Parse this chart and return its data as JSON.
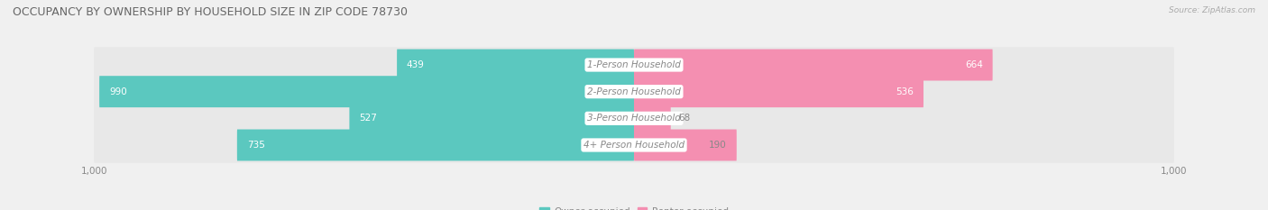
{
  "title": "OCCUPANCY BY OWNERSHIP BY HOUSEHOLD SIZE IN ZIP CODE 78730",
  "source": "Source: ZipAtlas.com",
  "categories": [
    "1-Person Household",
    "2-Person Household",
    "3-Person Household",
    "4+ Person Household"
  ],
  "owner_values": [
    439,
    990,
    527,
    735
  ],
  "renter_values": [
    664,
    536,
    68,
    190
  ],
  "owner_color": "#5bc8bf",
  "renter_color": "#f48fb1",
  "bg_bar_color": "#e8e8e8",
  "row_bg_color": "#f5f5f5",
  "background_color": "#f0f0f0",
  "max_value": 1000,
  "label_fontsize": 7.5,
  "value_fontsize": 7.5,
  "title_fontsize": 9,
  "bar_height": 0.62,
  "source_fontsize": 6.5
}
